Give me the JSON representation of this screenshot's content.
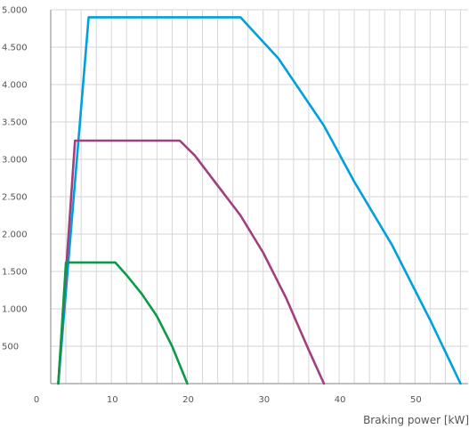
{
  "chart_data": {
    "type": "line",
    "title": "",
    "xlabel": "Braking power [kW]",
    "ylabel": "",
    "xlim": [
      0,
      55
    ],
    "ylim": [
      0,
      5000
    ],
    "x_tick_labels": [
      "0",
      "10",
      "20",
      "30",
      "40",
      "50"
    ],
    "x_tick_values": [
      0,
      10,
      20,
      30,
      40,
      50
    ],
    "y_tick_labels": [
      "500",
      "1.000",
      "1.500",
      "2.000",
      "2.500",
      "3.000",
      "3.500",
      "4.000",
      "4.500",
      "5.000"
    ],
    "y_tick_values": [
      500,
      1000,
      1500,
      2000,
      2500,
      3000,
      3500,
      4000,
      4500,
      5000
    ],
    "grid": {
      "vertical_step": 2,
      "horizontal_step": 500
    },
    "series": [
      {
        "color": "#00a0dd",
        "points": [
          [
            1.0,
            0
          ],
          [
            5.0,
            4900
          ],
          [
            25.0,
            4900
          ],
          [
            30.0,
            4350
          ],
          [
            36.0,
            3450
          ],
          [
            40.0,
            2700
          ],
          [
            45.0,
            1850
          ],
          [
            50.0,
            850
          ],
          [
            54.0,
            0
          ]
        ]
      },
      {
        "color": "#a0407e",
        "points": [
          [
            1.0,
            0
          ],
          [
            3.2,
            3250
          ],
          [
            17.0,
            3250
          ],
          [
            19.0,
            3050
          ],
          [
            22.0,
            2650
          ],
          [
            25.0,
            2250
          ],
          [
            28.0,
            1750
          ],
          [
            31.0,
            1150
          ],
          [
            34.0,
            450
          ],
          [
            36.0,
            0
          ]
        ]
      },
      {
        "color": "#0a9a48",
        "points": [
          [
            1.0,
            0
          ],
          [
            2.0,
            1620
          ],
          [
            8.5,
            1620
          ],
          [
            10.0,
            1450
          ],
          [
            12.0,
            1200
          ],
          [
            14.0,
            900
          ],
          [
            16.0,
            500
          ],
          [
            18.0,
            0
          ]
        ]
      }
    ]
  }
}
